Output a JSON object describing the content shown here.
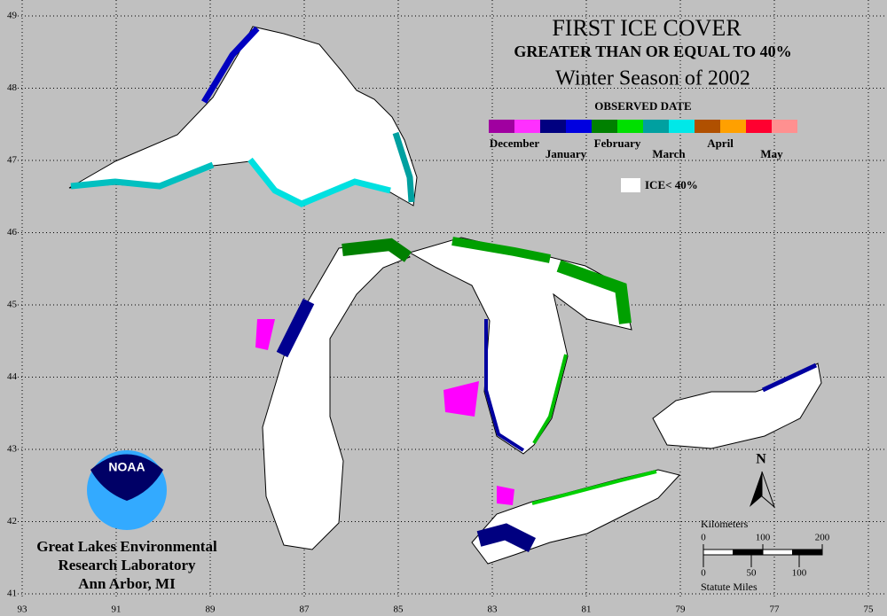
{
  "title": "FIRST ICE COVER",
  "subtitle": "GREATER THAN OR EQUAL TO 40%",
  "season": "Winter Season of 2002",
  "legend": {
    "title": "OBSERVED DATE",
    "months": [
      {
        "label": "December",
        "colors": [
          "#a000a0",
          "#ff30ff"
        ]
      },
      {
        "label": "January",
        "colors": [
          "#000080",
          "#0000e0"
        ]
      },
      {
        "label": "February",
        "colors": [
          "#008000",
          "#00e000"
        ]
      },
      {
        "label": "March",
        "colors": [
          "#00a0a0",
          "#00e8e8"
        ]
      },
      {
        "label": "April",
        "colors": [
          "#b05000",
          "#ffa000"
        ]
      },
      {
        "label": "May",
        "colors": [
          "#ff0030",
          "#ff9090"
        ]
      }
    ],
    "no_ice": "ICE< 40%"
  },
  "longitudes": [
    93,
    91,
    89,
    87,
    85,
    83,
    81,
    79,
    77,
    75
  ],
  "latitudes": [
    49,
    48,
    47,
    46,
    45,
    44,
    43,
    42,
    41
  ],
  "logo": "NOAA",
  "lab": [
    "Great Lakes Environmental",
    "Research Laboratory",
    "Ann Arbor, MI"
  ],
  "north": "N",
  "scale": {
    "km_title": "Kilometers",
    "km_ticks": [
      0,
      100,
      200
    ],
    "mi_title": "Statute Miles",
    "mi_ticks": [
      0,
      50,
      100
    ]
  }
}
